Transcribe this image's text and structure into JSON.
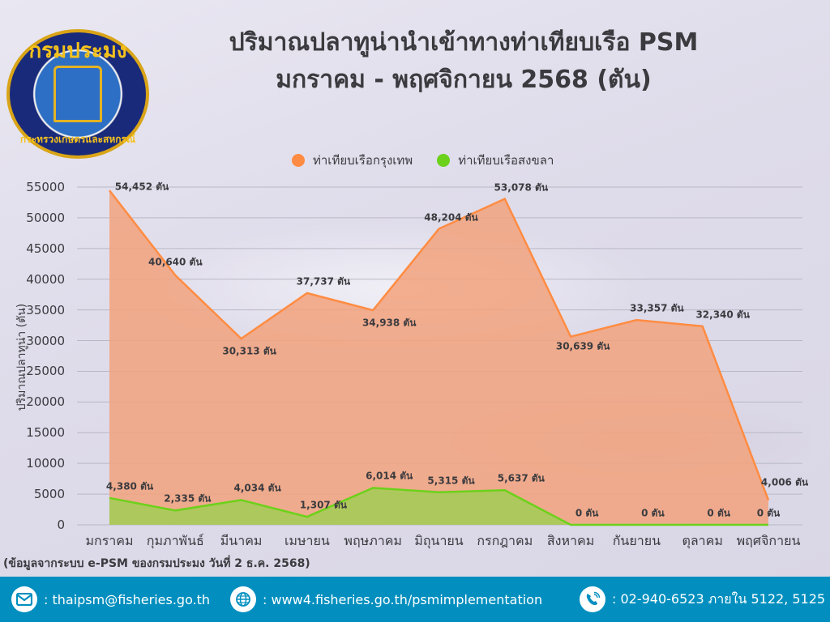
{
  "header": {
    "title_line1": "ปริมาณปลาทูน่านำเข้าทางท่าเทียบเรือ PSM",
    "title_line2": "มกราคม - พฤศจิกายน 2568 (ตัน)",
    "logo_text_top": "กรมประมง",
    "logo_text_bottom": "กระทรวงเกษตรและสหกรณ์"
  },
  "colors": {
    "bangkok": "#ff8c42",
    "bangkok_fill": "#f2a27c",
    "songkhla": "#6cd11a",
    "songkhla_fill": "#a9c95a",
    "text": "#3b3b3f",
    "footer_bg": "#028fbf",
    "gridline": "#b8b8c4"
  },
  "chart_data": {
    "type": "area",
    "title": "ปริมาณปลาทูน่านำเข้าทางท่าเทียบเรือ PSM มกราคม - พฤศจิกายน 2568 (ตัน)",
    "xlabel": "",
    "ylabel": "ปริมาณปลาทูน่า (ตัน)",
    "ylim": [
      0,
      55000
    ],
    "yticks": [
      0,
      5000,
      10000,
      15000,
      20000,
      25000,
      30000,
      35000,
      40000,
      45000,
      50000,
      55000
    ],
    "grid": true,
    "legend_position": "top",
    "unit_suffix": "ตัน",
    "categories": [
      "มกราคม",
      "กุมภาพันธ์",
      "มีนาคม",
      "เมษายน",
      "พฤษภาคม",
      "มิถุนายน",
      "กรกฎาคม",
      "สิงหาคม",
      "กันยายน",
      "ตุลาคม",
      "พฤศจิกายน"
    ],
    "series": [
      {
        "name": "ท่าเทียบเรือกรุงเทพ",
        "values": [
          54452,
          40640,
          30313,
          37737,
          34938,
          48204,
          53078,
          30639,
          33357,
          32340,
          4006
        ],
        "labels": [
          "54,452 ตัน",
          "40,640 ตัน",
          "30,313 ตัน",
          "37,737 ตัน",
          "34,938 ตัน",
          "48,204 ตัน",
          "53,078 ตัน",
          "30,639 ตัน",
          "33,357 ตัน",
          "32,340 ตัน",
          "4,006 ตัน"
        ]
      },
      {
        "name": "ท่าเทียบเรือสงขลา",
        "values": [
          4380,
          2335,
          4034,
          1307,
          6014,
          5315,
          5637,
          0,
          0,
          0,
          0
        ],
        "labels": [
          "4,380 ตัน",
          "2,335 ตัน",
          "4,034 ตัน",
          "1,307 ตัน",
          "6,014 ตัน",
          "5,315 ตัน",
          "5,637 ตัน",
          "0 ตัน",
          "0 ตัน",
          "0 ตัน",
          "0 ตัน"
        ]
      }
    ]
  },
  "note": "(ข้อมูลจากระบบ e-PSM ของกรมประมง วันที่ 2 ธ.ค. 2568)",
  "footer": {
    "email": ": thaipsm@fisheries.go.th",
    "website": ": www4.fisheries.go.th/psmimplementation",
    "phone": ": 02-940-6523 ภายใน 5122, 5125",
    "email_icon": "envelope-icon",
    "website_icon": "globe-icon",
    "phone_icon": "phone-icon"
  }
}
